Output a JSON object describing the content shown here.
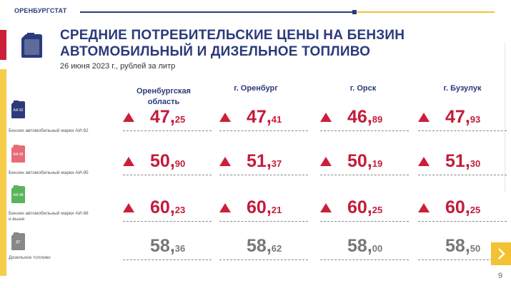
{
  "header": {
    "brand": "ОРЕНБУРГСТАТ",
    "title_line1": "СРЕДНИЕ ПОТРЕБИТЕЛЬСКИЕ ЦЕНЫ НА БЕНЗИН",
    "title_line2": "АВТОМОБИЛЬНЫЙ И ДИЗЕЛЬНОЕ ТОПЛИВО",
    "subtitle": "26 июня 2023 г., рублей за литр"
  },
  "columns": [
    "Оренбургская область",
    "г. Оренбург",
    "г. Орск",
    "г. Бузулук"
  ],
  "columns_lines": [
    [
      "Оренбургская",
      "область"
    ],
    [
      "г. Оренбург"
    ],
    [
      "г. Орск"
    ],
    [
      "г. Бузулук"
    ]
  ],
  "rows": [
    {
      "icon": "ai92-canister-icon",
      "icon_text": "АИ-92",
      "label": "Бензин автомобильный марки АИ-92",
      "label_lines": [
        "Бензин автомобильный марки АИ-92"
      ],
      "values": [
        {
          "whole": "47",
          "frac": "25"
        },
        {
          "whole": "47",
          "frac": "41"
        },
        {
          "whole": "46",
          "frac": "89"
        },
        {
          "whole": "47",
          "frac": "93"
        }
      ],
      "trend": "up"
    },
    {
      "icon": "ai95-canister-icon",
      "icon_text": "АИ-95",
      "label": "Бензин автомобильный марки АИ-95",
      "label_lines": [
        "Бензин автомобильный марки АИ-95"
      ],
      "values": [
        {
          "whole": "50",
          "frac": "90"
        },
        {
          "whole": "51",
          "frac": "37"
        },
        {
          "whole": "50",
          "frac": "19"
        },
        {
          "whole": "51",
          "frac": "30"
        }
      ],
      "trend": "up"
    },
    {
      "icon": "ai98-canister-icon",
      "icon_text": "АИ-98",
      "label": "Бензин автомобильный марки АИ-98 и выше",
      "label_lines": [
        "Бензин автомобильный марки АИ-98",
        "и выше"
      ],
      "values": [
        {
          "whole": "60",
          "frac": "23"
        },
        {
          "whole": "60",
          "frac": "21"
        },
        {
          "whole": "60",
          "frac": "25"
        },
        {
          "whole": "60",
          "frac": "25"
        }
      ],
      "trend": "up"
    },
    {
      "icon": "diesel-canister-icon",
      "icon_text": "ДТ",
      "label": "Дизельное топливо",
      "label_lines": [
        "Дизельное топливо"
      ],
      "values": [
        {
          "whole": "58",
          "frac": "36"
        },
        {
          "whole": "58",
          "frac": "62"
        },
        {
          "whole": "58",
          "frac": "00"
        },
        {
          "whole": "58",
          "frac": "50"
        }
      ],
      "trend": "none"
    }
  ],
  "colors": {
    "brand_blue": "#2b3a7a",
    "accent_red": "#c41b3a",
    "accent_yellow": "#f3c233",
    "neutral_gray": "#777777",
    "canister_colors": [
      "#2b3a7a",
      "#e66a78",
      "#5bb35b",
      "#888888"
    ]
  },
  "nav": {
    "next_icon": "chevron-right-icon"
  },
  "page_number": "9"
}
